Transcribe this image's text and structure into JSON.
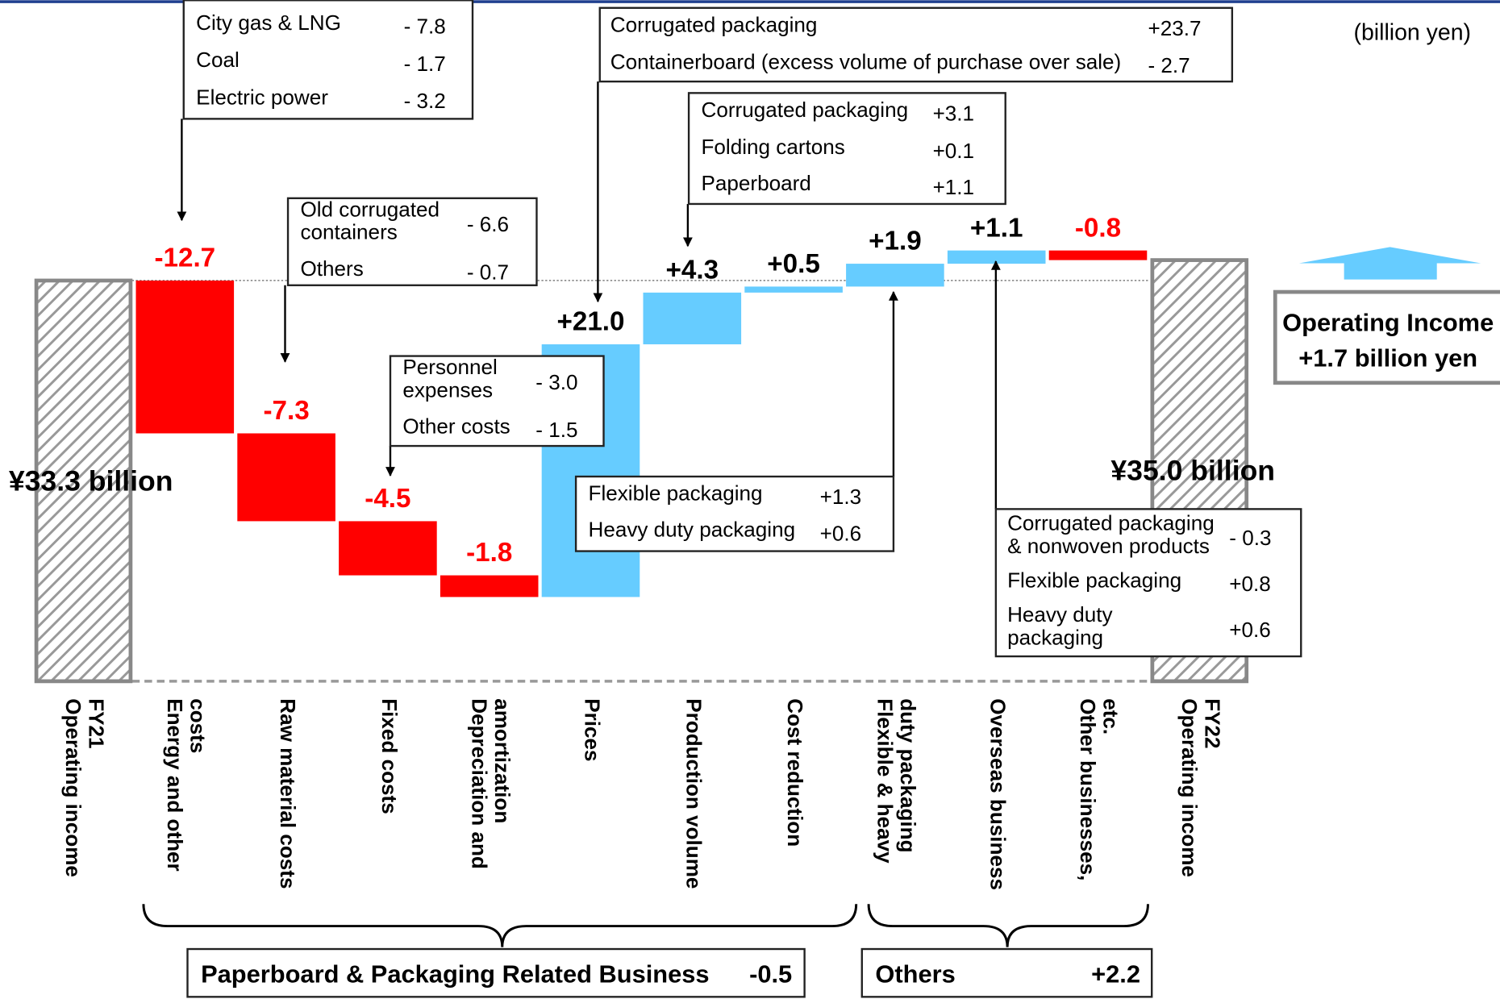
{
  "unit": "(billion yen)",
  "chart_data": {
    "type": "waterfall",
    "categories": [
      "Operating income\nFY21",
      "Energy and other\ncosts",
      "Raw material costs",
      "Fixed costs",
      "Depreciation and\namortization",
      "Prices",
      "Production volume",
      "Cost reduction",
      "Flexible & heavy\nduty packaging",
      "Overseas business",
      "Other businesses,\netc.",
      "Operating income\nFY22"
    ],
    "values": [
      33.3,
      -12.7,
      -7.3,
      -4.5,
      -1.8,
      21.0,
      4.3,
      0.5,
      1.9,
      1.1,
      -0.8,
      35.0
    ],
    "value_labels": [
      "¥33.3 billion",
      "-12.7",
      "-7.3",
      "-4.5",
      "-1.8",
      "+21.0",
      "+4.3",
      "+0.5",
      "+1.9",
      "+1.1",
      "-0.8",
      "¥35.0 billion"
    ],
    "colors": {
      "total": "#888888",
      "increase": "#66ccff",
      "decrease": "#ff0000"
    }
  },
  "callouts": [
    {
      "rows": [
        {
          "label": "City gas & LNG",
          "value": "- 7.8"
        },
        {
          "label": "Coal",
          "value": "- 1.7"
        },
        {
          "label": "Electric power",
          "value": "- 3.2"
        }
      ]
    },
    {
      "rows": [
        {
          "label": "Old corrugated\ncontainers",
          "value": "- 6.6"
        },
        {
          "label": "Others",
          "value": "- 0.7"
        }
      ]
    },
    {
      "rows": [
        {
          "label": "Personnel\nexpenses",
          "value": "- 3.0"
        },
        {
          "label": "Other costs",
          "value": "- 1.5"
        }
      ]
    },
    {
      "rows": [
        {
          "label": "Corrugated packaging",
          "value": "+23.7"
        },
        {
          "label": "Containerboard (excess volume of purchase over sale)",
          "value": "-  2.7"
        }
      ]
    },
    {
      "rows": [
        {
          "label": "Corrugated packaging",
          "value": "+3.1"
        },
        {
          "label": "Folding cartons",
          "value": "+0.1"
        },
        {
          "label": "Paperboard",
          "value": "+1.1"
        }
      ]
    },
    {
      "rows": [
        {
          "label": "Flexible packaging",
          "value": "+1.3"
        },
        {
          "label": "Heavy duty packaging",
          "value": "+0.6"
        }
      ]
    },
    {
      "rows": [
        {
          "label": "Corrugated packaging\n& nonwoven products",
          "value": "- 0.3"
        },
        {
          "label": "Flexible packaging",
          "value": "+0.8"
        },
        {
          "label": "Heavy duty\npackaging",
          "value": "+0.6"
        }
      ]
    }
  ],
  "groups": [
    {
      "name": "Paperboard & Packaging Related Business",
      "value": -0.5
    },
    {
      "name": "Others",
      "value": 2.2,
      "value_label": "+2.2"
    }
  ],
  "summary": {
    "title": "Operating Income",
    "text": "+1.7 billion yen"
  }
}
